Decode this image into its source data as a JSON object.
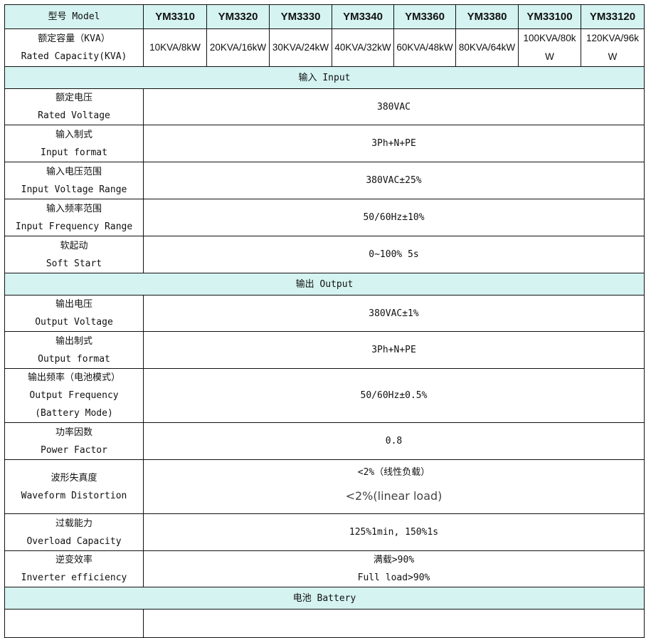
{
  "header": {
    "label": "型号 Model",
    "models": [
      "YM3310",
      "YM3320",
      "YM3330",
      "YM3340",
      "YM3360",
      "YM3380",
      "YM33100",
      "YM33120"
    ]
  },
  "capacity": {
    "label_cn": "额定容量（KVA）",
    "label_en": "Rated Capacity(KVA)",
    "values": [
      "10KVA/8kW",
      "20KVA/16kW",
      "30KVA/24kW",
      "40KVA/32kW",
      "60KVA/48kW",
      "80KVA/64kW",
      "100KVA/80kW",
      "120KVA/96kW"
    ]
  },
  "sections": {
    "input": "输入 Input",
    "output": "输出 Output",
    "battery": "电池 Battery"
  },
  "input_rows": [
    {
      "cn": "额定电压",
      "en": "Rated Voltage",
      "value": "380VAC"
    },
    {
      "cn": "输入制式",
      "en": "Input format",
      "value": "3Ph+N+PE"
    },
    {
      "cn": "输入电压范围",
      "en": "Input Voltage Range",
      "value": "380VAC±25%"
    },
    {
      "cn": "输入频率范围",
      "en": "Input Frequency Range",
      "value": "50/60Hz±10%"
    },
    {
      "cn": "软起动",
      "en": "Soft Start",
      "value": "0~100% 5s"
    }
  ],
  "output_rows": {
    "voltage": {
      "cn": "输出电压",
      "en": "Output Voltage",
      "value": "380VAC±1%"
    },
    "format": {
      "cn": "输出制式",
      "en": "Output format",
      "value": "3Ph+N+PE"
    },
    "frequency": {
      "cn": "输出频率（电池模式）",
      "en": "Output Frequency",
      "en2": "(Battery Mode)",
      "value": "50/60Hz±0.5%"
    },
    "pf": {
      "cn": "功率因数",
      "en": "Power Factor",
      "value": "0.8"
    },
    "thd": {
      "cn": "波形失真度",
      "en": "Waveform Distortion",
      "value_cn": "<2%（线性负载）",
      "value_en": "<2%(linear load)"
    },
    "overload": {
      "cn": "过载能力",
      "en": "Overload Capacity",
      "value": "125%1min, 150%1s"
    },
    "efficiency": {
      "cn": "逆变效率",
      "en": "Inverter efficiency",
      "value_cn": "满载>90%",
      "value_en": "Full load>90%"
    }
  },
  "colors": {
    "header_bg": "#d4f3f1",
    "border": "#111111"
  }
}
